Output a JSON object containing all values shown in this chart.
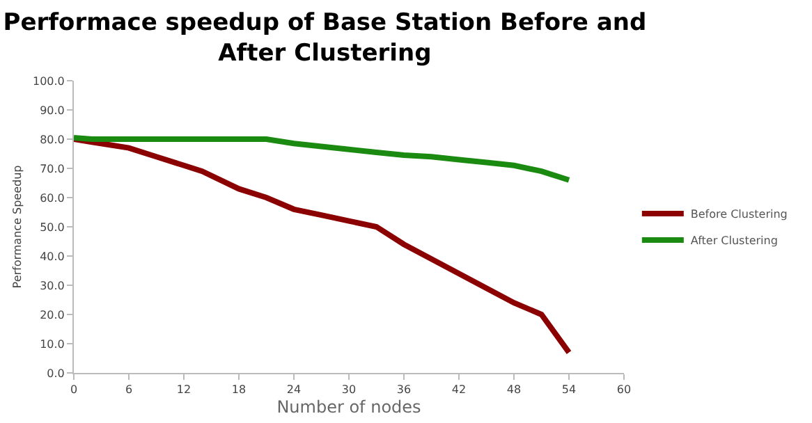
{
  "chart_data": {
    "type": "line",
    "title": "Performace speedup of Base Station Before and After Clustering",
    "xlabel": "Number of nodes",
    "ylabel": "Performance Speedup",
    "x": [
      0,
      2,
      6,
      9,
      12,
      14,
      18,
      21,
      24,
      27,
      30,
      33,
      36,
      39,
      42,
      45,
      48,
      51,
      54
    ],
    "series": [
      {
        "name": "Before Clustering",
        "color": "#8b0000",
        "values": [
          80,
          79,
          77,
          74,
          71,
          69,
          63,
          60,
          56,
          54,
          52,
          50,
          44,
          39,
          34,
          29,
          24,
          20,
          7
        ]
      },
      {
        "name": "After Clustering",
        "color": "#1a8a10",
        "values": [
          80.5,
          80,
          80,
          80,
          80,
          80,
          80,
          80,
          78.5,
          77.5,
          76.5,
          75.5,
          74.5,
          74,
          73,
          72,
          71,
          69,
          66
        ]
      }
    ],
    "xlim": [
      0,
      60
    ],
    "xticks": [
      0,
      6,
      12,
      18,
      24,
      30,
      36,
      42,
      48,
      54,
      60
    ],
    "ylim": [
      0,
      100
    ],
    "yticks": [
      {
        "value": 0,
        "label": "0.0"
      },
      {
        "value": 10,
        "label": "10.0"
      },
      {
        "value": 20,
        "label": "20.0"
      },
      {
        "value": 30,
        "label": "30.0"
      },
      {
        "value": 40,
        "label": "40.0"
      },
      {
        "value": 50,
        "label": "50.0"
      },
      {
        "value": 60,
        "label": "60.0"
      },
      {
        "value": 70,
        "label": "70.0"
      },
      {
        "value": 80,
        "label": "80.0"
      },
      {
        "value": 90,
        "label": "90.0"
      },
      {
        "value": 100,
        "label": "100.0"
      }
    ],
    "grid": false,
    "legend": "right",
    "marker": "none",
    "line_style": "solid"
  }
}
